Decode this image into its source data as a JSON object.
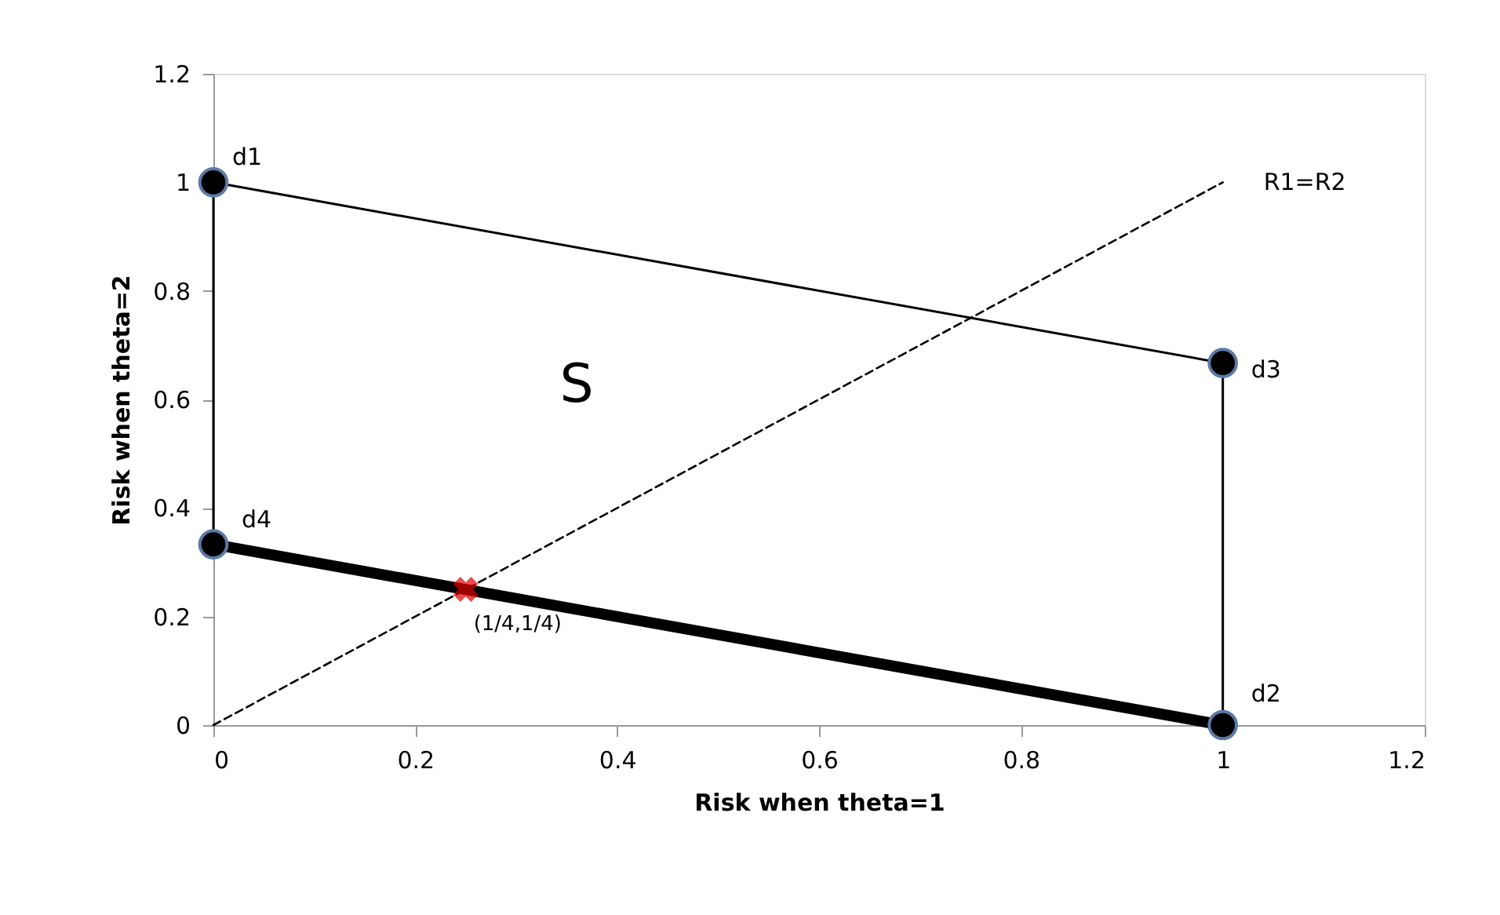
{
  "chart_data": {
    "type": "line",
    "xlabel": "Risk when theta=1",
    "ylabel": "Risk when theta=2",
    "xlim": [
      0,
      1.2
    ],
    "xticks": [
      0,
      0.2,
      0.4,
      0.6,
      0.8,
      1,
      1.2
    ],
    "ylim": [
      0,
      1.2
    ],
    "yticks": [
      0,
      0.2,
      0.4,
      0.6,
      0.8,
      1,
      1.2
    ],
    "grid": false,
    "series": [
      {
        "color": "#000000",
        "x": [
          0,
          0,
          1,
          1
        ],
        "values": [
          0.333,
          1,
          0.667,
          0
        ],
        "line_style": "solid"
      },
      {
        "color": "#000000",
        "x": [
          0,
          1
        ],
        "values": [
          0.333,
          0
        ],
        "line_style": "solid"
      },
      {
        "name": "R1=R2",
        "color": "#000000",
        "x": [
          0,
          1
        ],
        "values": [
          0,
          1
        ],
        "line_style": "dashed"
      },
      {
        "type": "scatter",
        "color": "#000000",
        "x": [
          0,
          1,
          1,
          0
        ],
        "values": [
          1,
          0,
          0.667,
          0.333
        ],
        "marker": "circle"
      },
      {
        "type": "scatter",
        "color": "#e00000",
        "x": [
          0.25
        ],
        "values": [
          0.25
        ],
        "marker": "cross"
      }
    ],
    "annotations": [
      {
        "text": "d1",
        "x": 0,
        "y": 1
      },
      {
        "text": "d2",
        "x": 1,
        "y": 0
      },
      {
        "text": "d3",
        "x": 1,
        "y": 0.667
      },
      {
        "text": "d4",
        "x": 0,
        "y": 0.333
      },
      {
        "text": "(1/4,1/4)",
        "x": 0.25,
        "y": 0.25
      },
      "S"
    ]
  }
}
